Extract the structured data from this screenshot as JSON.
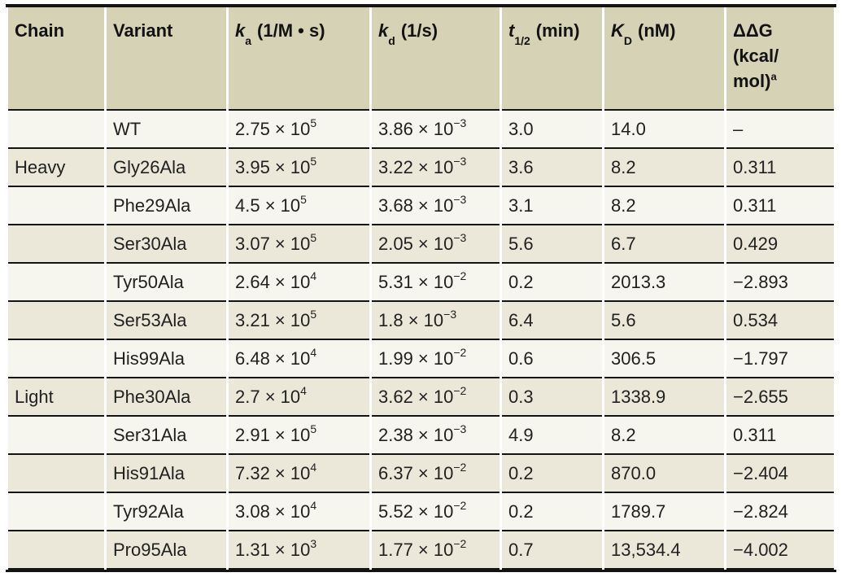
{
  "colors": {
    "header_bg": "#d5d2b5",
    "row_bg": "#f7f6ee",
    "row_alt_bg": "#ebe8da",
    "border": "#141414",
    "text": "#212121"
  },
  "table": {
    "columns": [
      {
        "id": "chain",
        "label": "Chain"
      },
      {
        "id": "variant",
        "label": "Variant"
      },
      {
        "id": "ka",
        "symbol": "k",
        "sub": "a",
        "unit": "(1/M • s)"
      },
      {
        "id": "kd",
        "symbol": "k",
        "sub": "d",
        "unit": "(1/s)"
      },
      {
        "id": "thalf",
        "symbol": "t",
        "sub": "1/2",
        "unit": "(min)"
      },
      {
        "id": "kD",
        "symbol": "K",
        "sub": "D",
        "unit": "(nM)"
      },
      {
        "id": "ddg",
        "lines": [
          "ΔΔG",
          "(kcal/",
          "mol)"
        ],
        "sup": "a"
      }
    ],
    "rows": [
      {
        "chain": "",
        "variant": "WT",
        "ka": {
          "base": "2.75 × 10",
          "exp": "5"
        },
        "kd": {
          "base": "3.86 × 10",
          "exp": "−3"
        },
        "thalf": "3.0",
        "kD": "14.0",
        "ddg": "–"
      },
      {
        "chain": "Heavy",
        "variant": "Gly26Ala",
        "ka": {
          "base": "3.95 × 10",
          "exp": "5"
        },
        "kd": {
          "base": "3.22 × 10",
          "exp": "−3"
        },
        "thalf": "3.6",
        "kD": "8.2",
        "ddg": "0.311"
      },
      {
        "chain": "",
        "variant": "Phe29Ala",
        "ka": {
          "base": "4.5 × 10",
          "exp": "5"
        },
        "kd": {
          "base": "3.68 × 10",
          "exp": "−3"
        },
        "thalf": "3.1",
        "kD": "8.2",
        "ddg": "0.311"
      },
      {
        "chain": "",
        "variant": "Ser30Ala",
        "ka": {
          "base": "3.07 × 10",
          "exp": "5"
        },
        "kd": {
          "base": "2.05 × 10",
          "exp": "−3"
        },
        "thalf": "5.6",
        "kD": "6.7",
        "ddg": "0.429"
      },
      {
        "chain": "",
        "variant": "Tyr50Ala",
        "ka": {
          "base": "2.64 × 10",
          "exp": "4"
        },
        "kd": {
          "base": "5.31 × 10",
          "exp": "−2"
        },
        "thalf": "0.2",
        "kD": "2013.3",
        "ddg": "−2.893"
      },
      {
        "chain": "",
        "variant": "Ser53Ala",
        "ka": {
          "base": "3.21 × 10",
          "exp": "5"
        },
        "kd": {
          "base": "1.8 × 10",
          "exp": "−3"
        },
        "thalf": "6.4",
        "kD": "5.6",
        "ddg": "0.534"
      },
      {
        "chain": "",
        "variant": "His99Ala",
        "ka": {
          "base": "6.48 × 10",
          "exp": "4"
        },
        "kd": {
          "base": "1.99 × 10",
          "exp": "−2"
        },
        "thalf": "0.6",
        "kD": "306.5",
        "ddg": "−1.797"
      },
      {
        "chain": "Light",
        "variant": "Phe30Ala",
        "ka": {
          "base": "2.7 × 10",
          "exp": "4"
        },
        "kd": {
          "base": "3.62 × 10",
          "exp": "−2"
        },
        "thalf": "0.3",
        "kD": "1338.9",
        "ddg": "−2.655"
      },
      {
        "chain": "",
        "variant": "Ser31Ala",
        "ka": {
          "base": "2.91 × 10",
          "exp": "5"
        },
        "kd": {
          "base": "2.38 × 10",
          "exp": "−3"
        },
        "thalf": "4.9",
        "kD": "8.2",
        "ddg": "0.311"
      },
      {
        "chain": "",
        "variant": "His91Ala",
        "ka": {
          "base": "7.32 × 10",
          "exp": "4"
        },
        "kd": {
          "base": "6.37 × 10",
          "exp": "−2"
        },
        "thalf": "0.2",
        "kD": "870.0",
        "ddg": "−2.404"
      },
      {
        "chain": "",
        "variant": "Tyr92Ala",
        "ka": {
          "base": "3.08 × 10",
          "exp": "4"
        },
        "kd": {
          "base": "5.52 × 10",
          "exp": "−2"
        },
        "thalf": "0.2",
        "kD": "1789.7",
        "ddg": "−2.824"
      },
      {
        "chain": "",
        "variant": "Pro95Ala",
        "ka": {
          "base": "1.31 × 10",
          "exp": "3"
        },
        "kd": {
          "base": "1.77 × 10",
          "exp": "−2"
        },
        "thalf": "0.7",
        "kD": "13,534.4",
        "ddg": "−4.002"
      }
    ]
  }
}
